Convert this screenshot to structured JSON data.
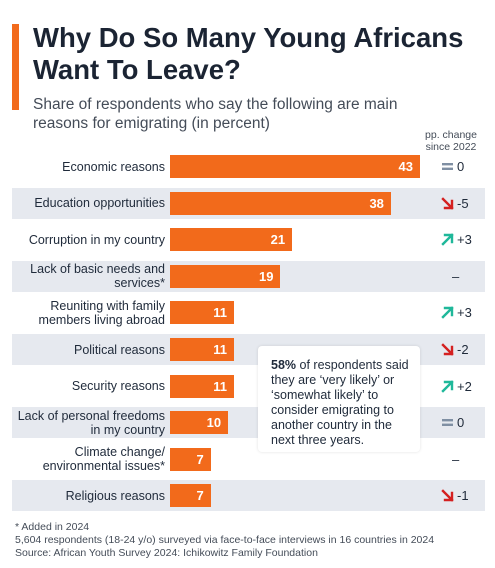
{
  "header": {
    "title": "Why Do So Many Young Africans Want To Leave?",
    "subtitle": "Share of respondents who say the following are main reasons for emigrating (in percent)",
    "change_header": "pp. change since 2022"
  },
  "colors": {
    "accent": "#f26a1b",
    "up": "#1fb89a",
    "down": "#d42020",
    "neutral": "#7f8fa3",
    "shaded_row": "#e6e9ef"
  },
  "callout": {
    "highlight": "58%",
    "text": " of respondents said they are ‘very likely’ or ‘somewhat likely’ to consider emigrating to another country in the next three years."
  },
  "footer": {
    "footnote": "* Added in 2024",
    "survey": "5,604 respondents (18-24 y/o) surveyed via face-to-face interviews in 16 countries in 2024",
    "source": "Source: African Youth Survey 2024: Ichikowitz Family Foundation"
  },
  "chart_data": {
    "type": "bar",
    "orientation": "horizontal",
    "categories": [
      "Economic reasons",
      "Education opportunities",
      "Corruption in my country",
      "Lack of basic needs and services*",
      "Reuniting with family members living abroad",
      "Political reasons",
      "Security reasons",
      "Lack of personal freedoms in my country",
      "Climate change/ environmental issues*",
      "Religious reasons"
    ],
    "values": [
      43,
      38,
      21,
      19,
      11,
      11,
      11,
      10,
      7,
      7
    ],
    "changes": [
      {
        "direction": "same",
        "icon": "equals-icon",
        "text": "0"
      },
      {
        "direction": "down",
        "icon": "arrow-down-right-icon",
        "text": "-5"
      },
      {
        "direction": "up",
        "icon": "arrow-up-right-icon",
        "text": "+3"
      },
      {
        "direction": "none",
        "icon": "",
        "text": "–"
      },
      {
        "direction": "up",
        "icon": "arrow-up-right-icon",
        "text": "+3"
      },
      {
        "direction": "down",
        "icon": "arrow-down-right-icon",
        "text": "-2"
      },
      {
        "direction": "up",
        "icon": "arrow-up-right-icon",
        "text": "+2"
      },
      {
        "direction": "same",
        "icon": "equals-icon",
        "text": "0"
      },
      {
        "direction": "none",
        "icon": "",
        "text": "–"
      },
      {
        "direction": "down",
        "icon": "arrow-down-right-icon",
        "text": "-1"
      }
    ],
    "xlim": [
      0,
      43
    ],
    "grid": false,
    "legend": "none"
  }
}
